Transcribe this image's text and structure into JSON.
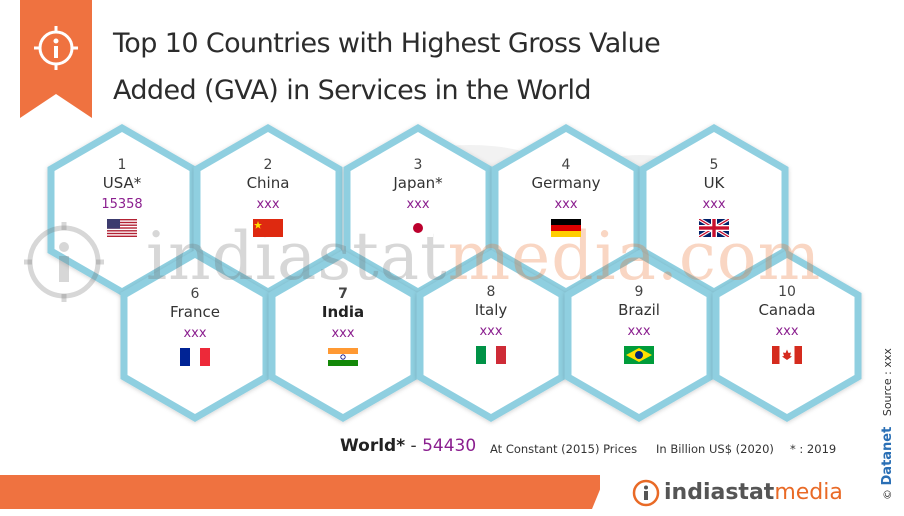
{
  "title": {
    "line1": "Top 10 Countries with Highest Gross Value",
    "line2": "Added (GVA) in Services in the World"
  },
  "colors": {
    "accent": "#ef7240",
    "hex_border": "#8fcfe0",
    "value_text": "#8b1f8f"
  },
  "icons": {
    "info": "info-icon",
    "watermark": "indiastat-logo-icon"
  },
  "watermark": {
    "part1": "indiastat",
    "part2": "media.com"
  },
  "countries": [
    {
      "rank": "1",
      "name": "USA*",
      "value": "15358",
      "flag": "usa-flag"
    },
    {
      "rank": "2",
      "name": "China",
      "value": "xxx",
      "flag": "china-flag"
    },
    {
      "rank": "3",
      "name": "Japan*",
      "value": "xxx",
      "flag": "japan-flag"
    },
    {
      "rank": "4",
      "name": "Germany",
      "value": "xxx",
      "flag": "germany-flag"
    },
    {
      "rank": "5",
      "name": "UK",
      "value": "xxx",
      "flag": "uk-flag"
    },
    {
      "rank": "6",
      "name": "France",
      "value": "xxx",
      "flag": "france-flag"
    },
    {
      "rank": "7",
      "name": "India",
      "value": "xxx",
      "flag": "india-flag"
    },
    {
      "rank": "8",
      "name": "Italy",
      "value": "xxx",
      "flag": "italy-flag"
    },
    {
      "rank": "9",
      "name": "Brazil",
      "value": "xxx",
      "flag": "brazil-flag"
    },
    {
      "rank": "10",
      "name": "Canada",
      "value": "xxx",
      "flag": "canada-flag"
    }
  ],
  "footer": {
    "world_label": "World*",
    "world_dash": " - ",
    "world_value": "54430",
    "prices": "At Constant (2015) Prices",
    "unit": "In Billion US$ (2020)",
    "note": "* : 2019"
  },
  "branding": {
    "logo_part1": "indiastat",
    "logo_part2": "media",
    "copyright": "©",
    "datanet": "Datanet",
    "source": "Source : xxx"
  }
}
